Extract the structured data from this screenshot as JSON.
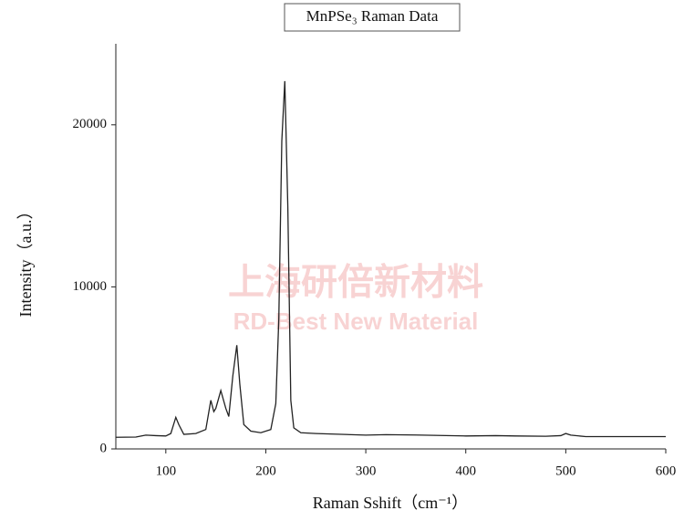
{
  "chart_data": {
    "type": "line",
    "title": "MnPSe₃ Raman Data",
    "x_label": "Raman Sshift（cm⁻¹）",
    "y_label": "Intensity（a.u.）",
    "watermark": [
      "上海研倍新材料",
      "RD-Best New Material"
    ],
    "xlim": [
      50,
      600
    ],
    "ylim": [
      0,
      25000
    ],
    "xticks": [
      100,
      200,
      300,
      400,
      500,
      600
    ],
    "yticks": [
      0,
      10000,
      20000
    ],
    "grid": false,
    "series": [
      {
        "color": "#222222",
        "x": [
          50,
          70,
          80,
          90,
          100,
          105,
          110,
          113,
          118,
          130,
          140,
          145,
          148,
          150,
          155,
          160,
          163,
          167,
          171,
          174,
          178,
          185,
          195,
          205,
          210,
          213,
          216,
          219,
          222,
          225,
          228,
          235,
          250,
          300,
          320,
          350,
          400,
          430,
          450,
          480,
          495,
          500,
          505,
          520,
          600
        ],
        "values": [
          720,
          730,
          850,
          820,
          800,
          950,
          1950,
          1500,
          900,
          950,
          1200,
          3000,
          2300,
          2500,
          3600,
          2500,
          2000,
          4500,
          6400,
          4000,
          1500,
          1100,
          1000,
          1200,
          2800,
          8000,
          19000,
          22700,
          15000,
          3000,
          1300,
          1000,
          950,
          850,
          880,
          860,
          800,
          820,
          800,
          780,
          820,
          950,
          850,
          760,
          760
        ]
      }
    ]
  }
}
